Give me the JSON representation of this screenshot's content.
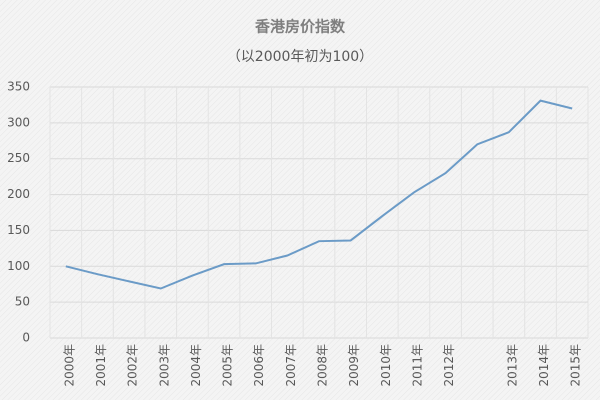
{
  "chart_data": {
    "type": "line",
    "title": "香港房价指数",
    "subtitle": "（以2000年初为100）",
    "categories": [
      "2000年",
      "2001年",
      "2002年",
      "2003年",
      "2004年",
      "2005年",
      "2006年",
      "2007年",
      "2008年",
      "2009年",
      "2010年",
      "2011年",
      "2012年",
      null,
      "2013年",
      "2014年",
      "2015年"
    ],
    "series": [
      {
        "name": "香港房价指数",
        "color": "#6b9bc7",
        "values": [
          100,
          89,
          79,
          69,
          87,
          103,
          104,
          115,
          135,
          136,
          170,
          203,
          230,
          270,
          287,
          331,
          320
        ]
      }
    ],
    "ylim": [
      0,
      350
    ],
    "yticks": [
      0,
      50,
      100,
      150,
      200,
      250,
      300,
      350
    ],
    "grid": true
  }
}
